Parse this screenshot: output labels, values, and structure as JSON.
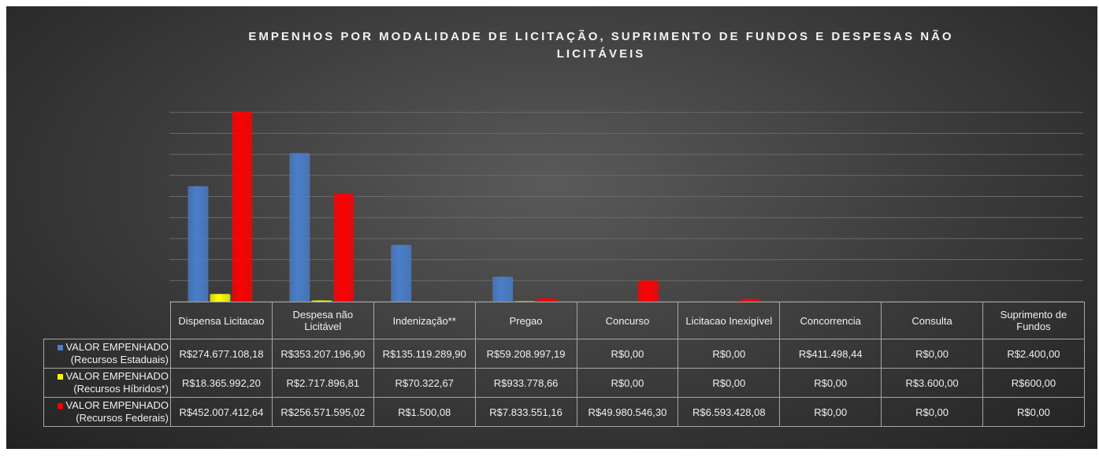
{
  "chart_data": {
    "type": "bar",
    "title": "EMPENHOS POR MODALIDADE DE LICITAÇÃO, SUPRIMENTO DE FUNDOS E DESPESAS NÃO LICITÁVEIS",
    "categories": [
      "Dispensa Licitacao",
      "Despesa não Licitável",
      "Indenização**",
      "Pregao",
      "Concurso",
      "Licitacao Inexigível",
      "Concorrencia",
      "Consulta",
      "Suprimento de Fundos"
    ],
    "series": [
      {
        "name": "VALOR EMPENHADO (Recursos Estaduais)",
        "color": "#4a7ecb",
        "values": [
          274677108.18,
          353207196.9,
          135119289.9,
          59208997.19,
          0,
          0,
          411498.44,
          0,
          2400
        ],
        "value_labels": [
          "R$274.677.108,18",
          "R$353.207.196,90",
          "R$135.119.289,90",
          "R$59.208.997,19",
          "R$0,00",
          "R$0,00",
          "R$411.498,44",
          "R$0,00",
          "R$2.400,00"
        ]
      },
      {
        "name": "VALOR EMPENHADO (Recursos Híbridos*)",
        "color": "#ffff00",
        "values": [
          18365992.2,
          2717896.81,
          70322.67,
          933778.66,
          0,
          0,
          0,
          3600,
          600
        ],
        "value_labels": [
          "R$18.365.992,20",
          "R$2.717.896,81",
          "R$70.322,67",
          "R$933.778,66",
          "R$0,00",
          "R$0,00",
          "R$0,00",
          "R$3.600,00",
          "R$600,00"
        ]
      },
      {
        "name": "VALOR EMPENHADO (Recursos Federais)",
        "color": "#ff0000",
        "values": [
          452007412.64,
          256571595.02,
          1500.08,
          7833551.16,
          49980546.3,
          6593428.08,
          0,
          0,
          0
        ],
        "value_labels": [
          "R$452.007.412,64",
          "R$256.571.595,02",
          "R$1.500,08",
          "R$7.833.551,16",
          "R$49.980.546,30",
          "R$6.593.428,08",
          "R$0,00",
          "R$0,00",
          "R$0,00"
        ]
      }
    ],
    "ylim": [
      0,
      500000000
    ],
    "yticks": [
      0,
      50000000,
      100000000,
      150000000,
      200000000,
      250000000,
      300000000,
      350000000,
      400000000,
      450000000
    ],
    "grid": true
  }
}
